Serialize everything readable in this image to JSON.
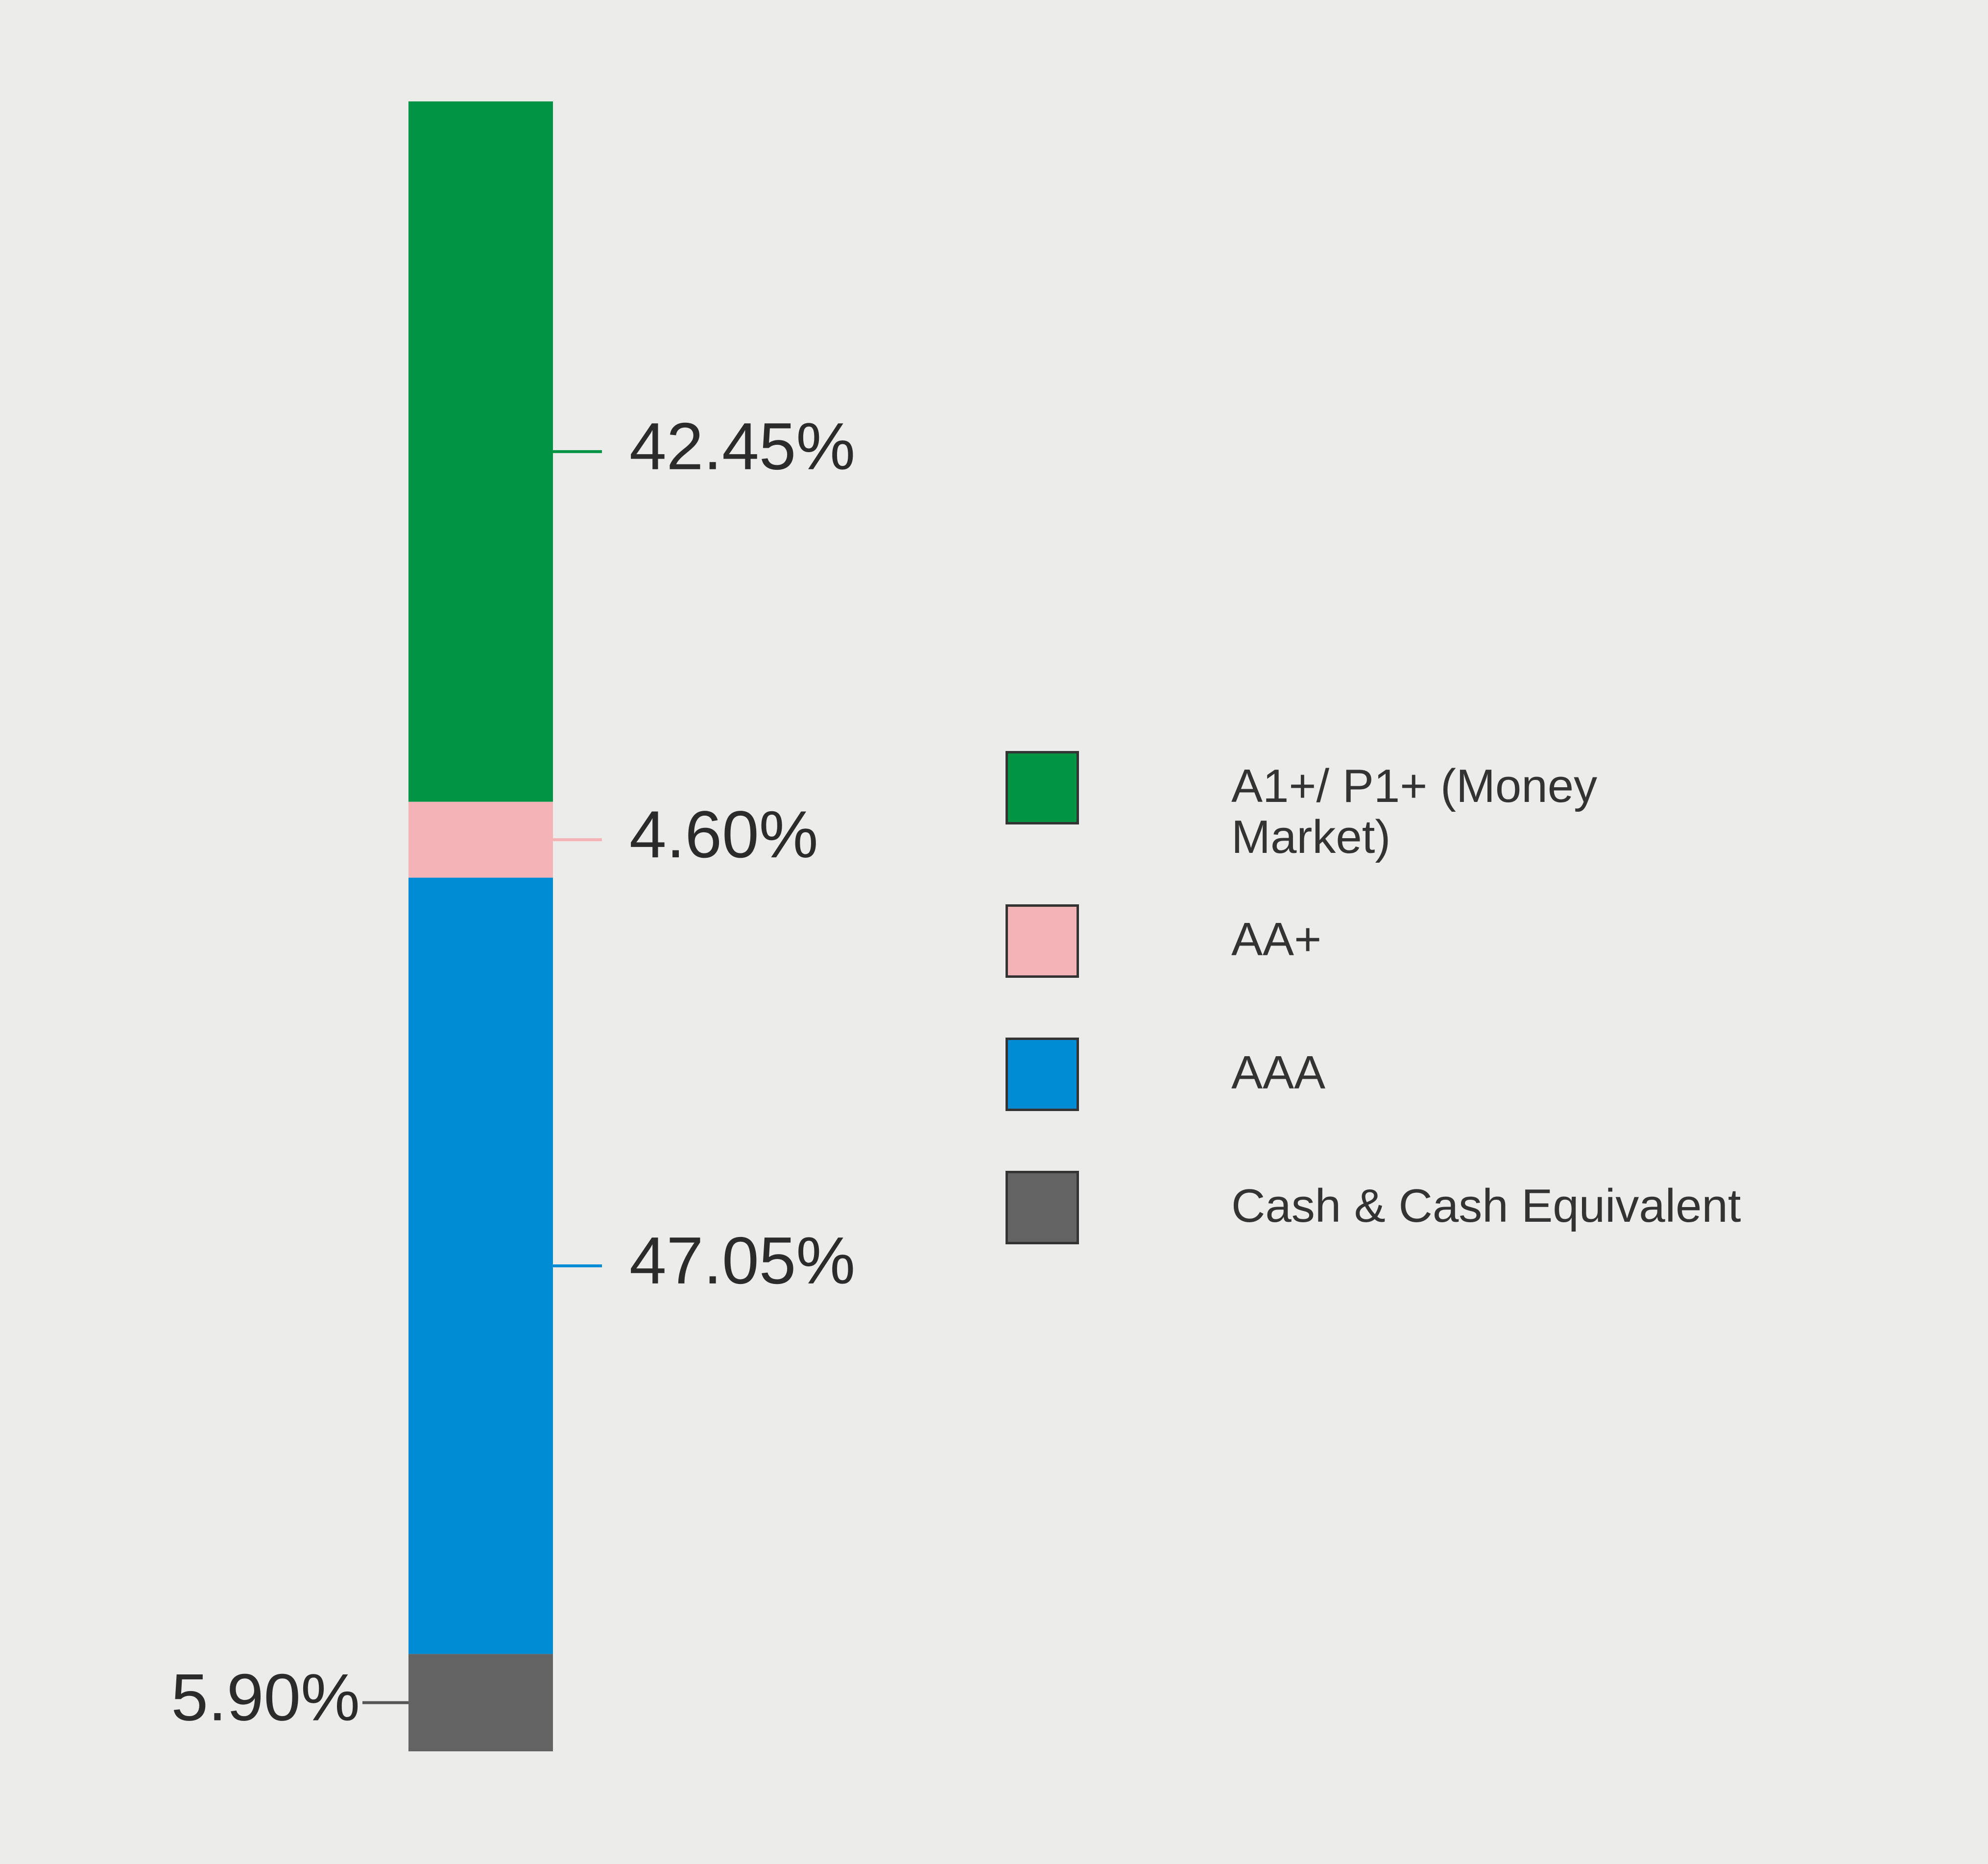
{
  "chart_data": {
    "type": "stacked-bar",
    "categories": [
      null
    ],
    "series": [
      {
        "name": "A1+/ P1+ (Money Market)",
        "color": "#009444",
        "values": [
          42.45
        ],
        "value_labels": [
          "42.45%"
        ]
      },
      {
        "name": "AA+",
        "color": "#f4b3b6",
        "values": [
          4.6
        ],
        "value_labels": [
          "4.60%"
        ]
      },
      {
        "name": "AAA",
        "color": "#008bd5",
        "values": [
          47.05
        ],
        "value_labels": [
          "47.05%"
        ]
      },
      {
        "name": "Cash & Cash Equivalent",
        "color": "#636363",
        "values": [
          5.9
        ],
        "value_labels": [
          "5.90%"
        ]
      }
    ]
  }
}
